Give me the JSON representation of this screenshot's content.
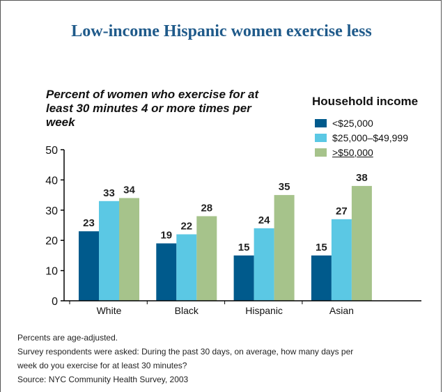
{
  "title": "Low-income Hispanic women exercise less",
  "chart_data": {
    "type": "bar",
    "subtitle": "Percent of women who exercise for at least 30 minutes 4 or more times per week",
    "categories": [
      "White",
      "Black",
      "Hispanic",
      "Asian"
    ],
    "series": [
      {
        "name": "<$25,000",
        "values": [
          23,
          19,
          15,
          15
        ],
        "color": "#005a8c"
      },
      {
        "name": "$25,000–$49,999",
        "values": [
          33,
          22,
          24,
          27
        ],
        "color": "#5bc8e4"
      },
      {
        "name": ">$50,000",
        "values": [
          34,
          28,
          35,
          38
        ],
        "color": "#a6c38b"
      }
    ],
    "legend_title": "Household income",
    "legend_position": "top-right",
    "ylim": [
      0,
      50
    ],
    "yticks": [
      0,
      10,
      20,
      30,
      40,
      50
    ],
    "grid": false
  },
  "notes": [
    "Percents are age-adjusted.",
    "Survey respondents were asked: During the past 30 days, on average, how many days per",
    "week do you exercise for at least 30 minutes?",
    "Source: NYC Community Health Survey, 2003"
  ]
}
